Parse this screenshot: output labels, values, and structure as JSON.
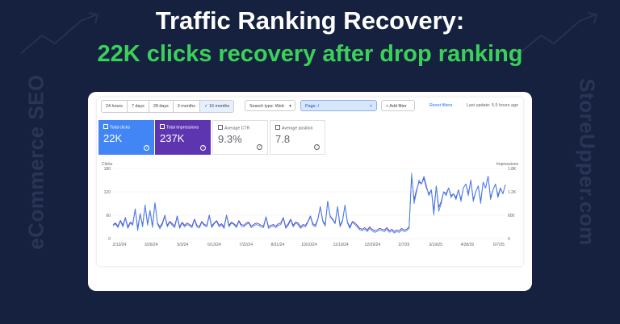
{
  "headline": "Traffic Ranking Recovery:",
  "subheadline": "22K clicks recovery after drop ranking",
  "side_left": "eCommerce SEO",
  "side_right": "StoreUpper.com",
  "colors": {
    "background": "#16203f",
    "accent_green": "#3ad15a",
    "clicks": "#4285f4",
    "impressions": "#5e35b1"
  },
  "toolbar": {
    "ranges": [
      "24 hours",
      "7 days",
      "28 days",
      "3 months",
      "16 months"
    ],
    "active_range": "16 months",
    "search_type": "Search type: Web",
    "page_filter": "Page: /",
    "page_filter_close": "×",
    "add_filter": "+ Add filter",
    "reset_filters": "Reset filters",
    "last_update": "Last update: 5.5 hours ago"
  },
  "metrics": [
    {
      "label": "Total clicks",
      "value": "22K",
      "checked": true
    },
    {
      "label": "Total impressions",
      "value": "237K",
      "checked": true
    },
    {
      "label": "Average CTR",
      "value": "9.3%",
      "checked": false
    },
    {
      "label": "Average position",
      "value": "7.8",
      "checked": false
    }
  ],
  "chart_data": {
    "type": "line",
    "left_axis_label": "Clicks",
    "right_axis_label": "Impressions",
    "left_ticks": [
      "180",
      "120",
      "60",
      "0"
    ],
    "right_ticks": [
      "1.8K",
      "1.2K",
      "600",
      "0"
    ],
    "ylim_left": [
      0,
      180
    ],
    "ylim_right": [
      0,
      1800
    ],
    "x_ticks": [
      "2/13/24",
      "3/26/24",
      "5/3/24",
      "6/13/24",
      "7/22/24",
      "8/31/24",
      "10/10/24",
      "11/19/24",
      "12/29/24",
      "2/7/25",
      "3/19/25",
      "4/28/25",
      "6/7/25"
    ],
    "series": [
      {
        "name": "Clicks",
        "color": "#4285f4",
        "values": [
          32,
          38,
          28,
          45,
          30,
          52,
          26,
          40,
          34,
          75,
          20,
          62,
          30,
          85,
          34,
          70,
          28,
          92,
          38,
          25,
          36,
          58,
          30,
          42,
          34,
          28,
          55,
          26,
          40,
          30,
          36,
          33,
          28,
          48,
          30,
          27,
          42,
          33,
          30,
          58,
          28,
          38,
          44,
          30,
          35,
          26,
          58,
          30,
          40,
          36,
          28,
          44,
          32,
          30,
          36,
          40,
          28,
          32,
          36,
          34,
          30,
          28,
          54,
          26,
          30,
          32,
          28,
          34,
          36,
          52,
          26,
          34,
          48,
          30,
          40,
          36,
          26,
          32,
          30,
          42,
          56,
          34,
          30,
          48,
          80,
          44,
          32,
          95,
          56,
          48,
          38,
          80,
          30,
          44,
          85,
          40,
          26,
          42,
          36,
          30,
          22,
          20,
          24,
          18,
          26,
          20,
          16,
          18,
          22,
          20,
          18,
          24,
          16,
          20,
          14,
          18,
          16,
          22,
          18,
          20,
          26,
          168,
          90,
          120,
          150,
          140,
          160,
          135,
          110,
          125,
          60,
          135,
          70,
          90,
          120,
          110,
          130,
          105,
          115,
          100,
          125,
          95,
          130,
          140,
          110,
          150,
          95,
          120,
          135,
          90,
          145,
          130,
          160,
          100,
          125,
          140,
          105,
          128,
          115,
          138
        ]
      },
      {
        "name": "Impressions",
        "color": "#5e35b1",
        "values": [
          360,
          400,
          320,
          470,
          340,
          540,
          300,
          420,
          380,
          760,
          260,
          640,
          340,
          860,
          380,
          720,
          320,
          920,
          400,
          300,
          400,
          600,
          340,
          440,
          380,
          320,
          580,
          300,
          420,
          340,
          400,
          360,
          320,
          500,
          340,
          310,
          440,
          360,
          340,
          600,
          320,
          400,
          460,
          340,
          380,
          300,
          600,
          340,
          420,
          380,
          320,
          460,
          360,
          340,
          400,
          420,
          320,
          360,
          400,
          380,
          340,
          320,
          560,
          300,
          340,
          360,
          320,
          380,
          400,
          540,
          300,
          380,
          500,
          340,
          420,
          400,
          300,
          360,
          340,
          440,
          580,
          380,
          340,
          500,
          820,
          460,
          360,
          960,
          580,
          500,
          400,
          820,
          340,
          460,
          860,
          420,
          300,
          440,
          400,
          340,
          260,
          240,
          280,
          220,
          300,
          240,
          200,
          220,
          260,
          240,
          220,
          280,
          200,
          240,
          180,
          220,
          200,
          260,
          220,
          240,
          300,
          1600,
          1000,
          1250,
          1450,
          1400,
          1550,
          1300,
          1150,
          1250,
          700,
          1350,
          800,
          950,
          1200,
          1150,
          1300,
          1100,
          1150,
          1050,
          1250,
          1000,
          1300,
          1400,
          1150,
          1500,
          1000,
          1200,
          1350,
          950,
          1450,
          1300,
          1600,
          1050,
          1250,
          1400,
          1100,
          1300,
          1150,
          1380
        ]
      }
    ]
  }
}
